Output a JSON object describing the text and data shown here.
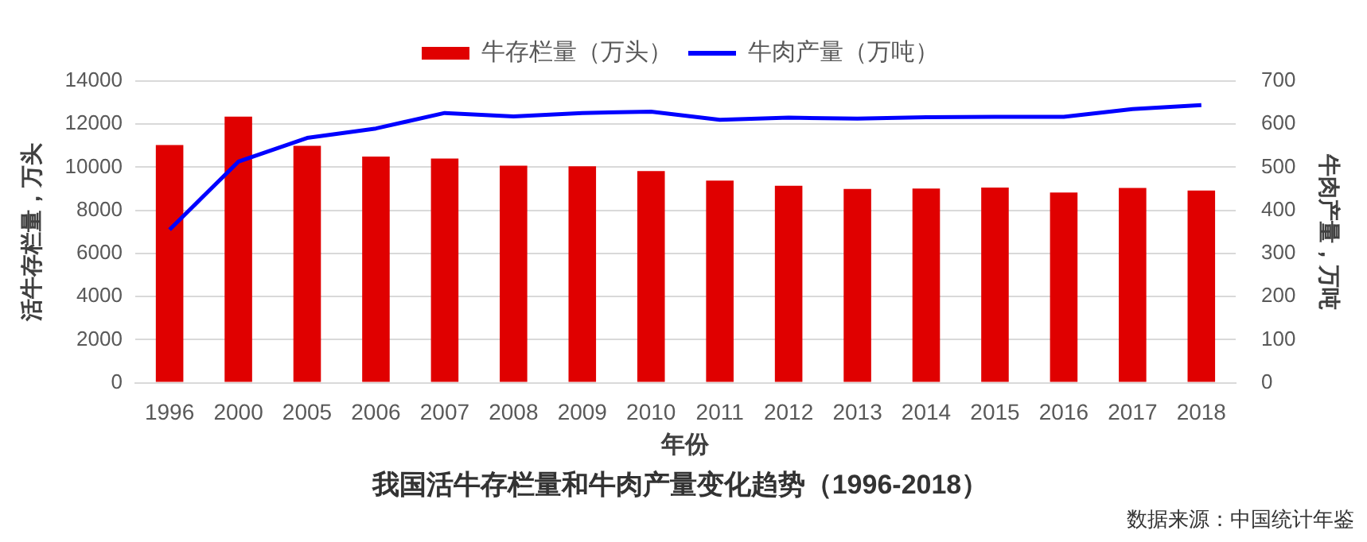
{
  "chart_data": {
    "type": "bar",
    "title": "我国活牛存栏量和牛肉产量变化趋势（1996-2018）",
    "xlabel": "年份",
    "ylabel": "活牛存栏量，万头",
    "y2label": "牛肉产量，万吨",
    "categories": [
      "1996",
      "2000",
      "2005",
      "2006",
      "2007",
      "2008",
      "2009",
      "2010",
      "2011",
      "2012",
      "2013",
      "2014",
      "2015",
      "2016",
      "2017",
      "2018"
    ],
    "series": [
      {
        "name": "牛存栏量（万头）",
        "color": "#e00000",
        "values": [
          11030,
          12350,
          10990,
          10500,
          10400,
          10070,
          10040,
          9820,
          9380,
          9140,
          8990,
          9010,
          9060,
          8830,
          9040,
          8920
        ]
      },
      {
        "name": "牛肉产量（万吨）",
        "type": "line",
        "axis": "y2",
        "color": "#0000ff",
        "values": [
          355,
          513,
          568,
          590,
          626,
          618,
          626,
          629,
          610,
          615,
          613,
          616,
          617,
          617,
          635,
          644
        ]
      }
    ],
    "ylim": [
      0,
      14000
    ],
    "yticks": [
      0,
      2000,
      4000,
      6000,
      8000,
      10000,
      12000,
      14000
    ],
    "y2lim": [
      0,
      700
    ],
    "y2ticks": [
      0,
      100,
      200,
      300,
      400,
      500,
      600,
      700
    ],
    "grid": "y",
    "legend": "top",
    "marker": "none",
    "annotations": [
      "数据来源：中国统计年鉴"
    ]
  }
}
